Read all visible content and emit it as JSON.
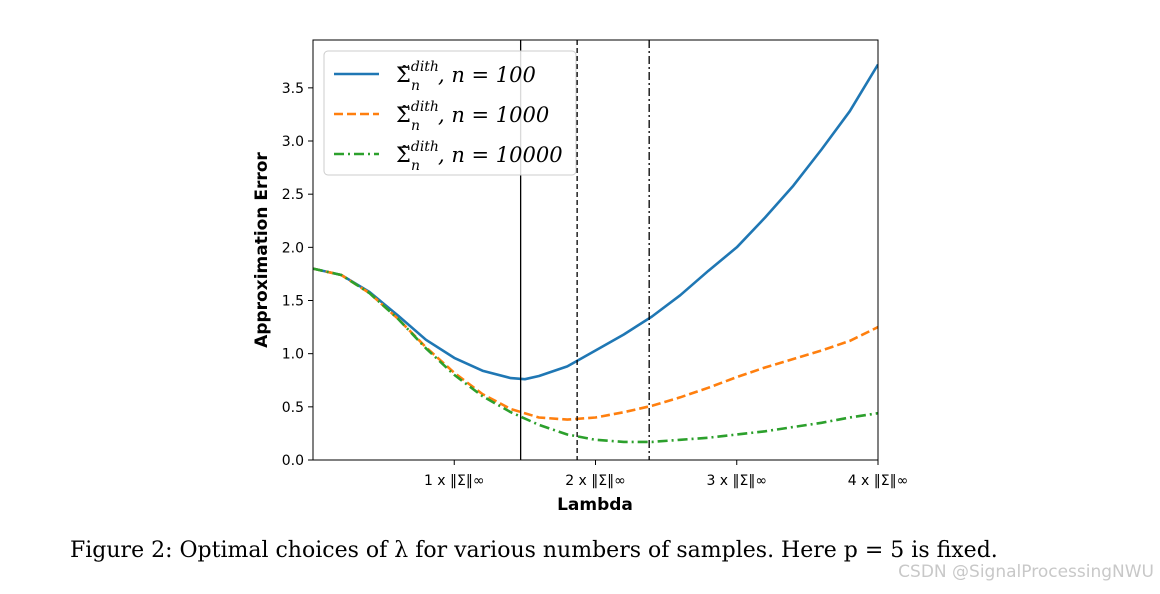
{
  "caption": "Figure 2: Optimal choices of λ for various numbers of samples. Here p = 5 is fixed.",
  "watermark": "CSDN @SignalProcessingNWU",
  "chart_data": {
    "type": "line",
    "xlabel": "Lambda",
    "ylabel": "Approximation Error",
    "xlim": [
      0,
      4
    ],
    "ylim": [
      0,
      3.95
    ],
    "x_ticks": [
      {
        "value": 1,
        "label": "1 x ‖Σ‖∞"
      },
      {
        "value": 2,
        "label": "2 x ‖Σ‖∞"
      },
      {
        "value": 3,
        "label": "3 x ‖Σ‖∞"
      },
      {
        "value": 4,
        "label": "4 x ‖Σ‖∞"
      }
    ],
    "y_ticks": [
      {
        "value": 0.0,
        "label": "0.0"
      },
      {
        "value": 0.5,
        "label": "0.5"
      },
      {
        "value": 1.0,
        "label": "1.0"
      },
      {
        "value": 1.5,
        "label": "1.5"
      },
      {
        "value": 2.0,
        "label": "2.0"
      },
      {
        "value": 2.5,
        "label": "2.5"
      },
      {
        "value": 3.0,
        "label": "3.0"
      },
      {
        "value": 3.5,
        "label": "3.5"
      }
    ],
    "grid": false,
    "legend_position": "top-left",
    "vertical_lines": [
      {
        "x": 1.47,
        "style": "solid",
        "series": "n = 100"
      },
      {
        "x": 1.87,
        "style": "dashed",
        "series": "n = 1000"
      },
      {
        "x": 2.38,
        "style": "dashdot",
        "series": "n = 10000"
      }
    ],
    "series": [
      {
        "name": "n = 100",
        "legend_base": "Σ̃",
        "legend_sup": "dith",
        "legend_sub": "n",
        "legend_rest": ", n = 100",
        "color": "#1f77b4",
        "style": "solid",
        "x": [
          0,
          0.2,
          0.4,
          0.6,
          0.8,
          1.0,
          1.2,
          1.4,
          1.5,
          1.6,
          1.8,
          2.0,
          2.2,
          2.4,
          2.6,
          2.8,
          3.0,
          3.2,
          3.4,
          3.6,
          3.8,
          3.9,
          4.0
        ],
        "y": [
          1.8,
          1.74,
          1.58,
          1.36,
          1.13,
          0.96,
          0.84,
          0.77,
          0.76,
          0.79,
          0.88,
          1.03,
          1.18,
          1.35,
          1.55,
          1.78,
          2.0,
          2.28,
          2.58,
          2.92,
          3.28,
          3.5,
          3.72
        ]
      },
      {
        "name": "n = 1000",
        "legend_base": "Σ̃",
        "legend_sup": "dith",
        "legend_sub": "n",
        "legend_rest": ", n = 1000",
        "color": "#ff7f0e",
        "style": "dashed",
        "x": [
          0,
          0.2,
          0.4,
          0.6,
          0.8,
          1.0,
          1.2,
          1.4,
          1.6,
          1.8,
          2.0,
          2.2,
          2.4,
          2.6,
          2.8,
          3.0,
          3.2,
          3.4,
          3.6,
          3.8,
          4.0
        ],
        "y": [
          1.8,
          1.74,
          1.57,
          1.33,
          1.06,
          0.82,
          0.62,
          0.48,
          0.4,
          0.38,
          0.4,
          0.45,
          0.51,
          0.59,
          0.68,
          0.78,
          0.87,
          0.95,
          1.03,
          1.12,
          1.25
        ]
      },
      {
        "name": "n = 10000",
        "legend_base": "Σ̃",
        "legend_sup": "dith",
        "legend_sub": "n",
        "legend_rest": ", n = 10000",
        "color": "#2ca02c",
        "style": "dashdot",
        "x": [
          0,
          0.2,
          0.4,
          0.6,
          0.8,
          1.0,
          1.2,
          1.4,
          1.6,
          1.8,
          2.0,
          2.2,
          2.4,
          2.6,
          2.8,
          3.0,
          3.2,
          3.4,
          3.6,
          3.8,
          4.0
        ],
        "y": [
          1.8,
          1.74,
          1.57,
          1.33,
          1.05,
          0.8,
          0.6,
          0.45,
          0.33,
          0.24,
          0.19,
          0.17,
          0.17,
          0.19,
          0.21,
          0.24,
          0.27,
          0.31,
          0.35,
          0.4,
          0.44
        ]
      }
    ]
  }
}
